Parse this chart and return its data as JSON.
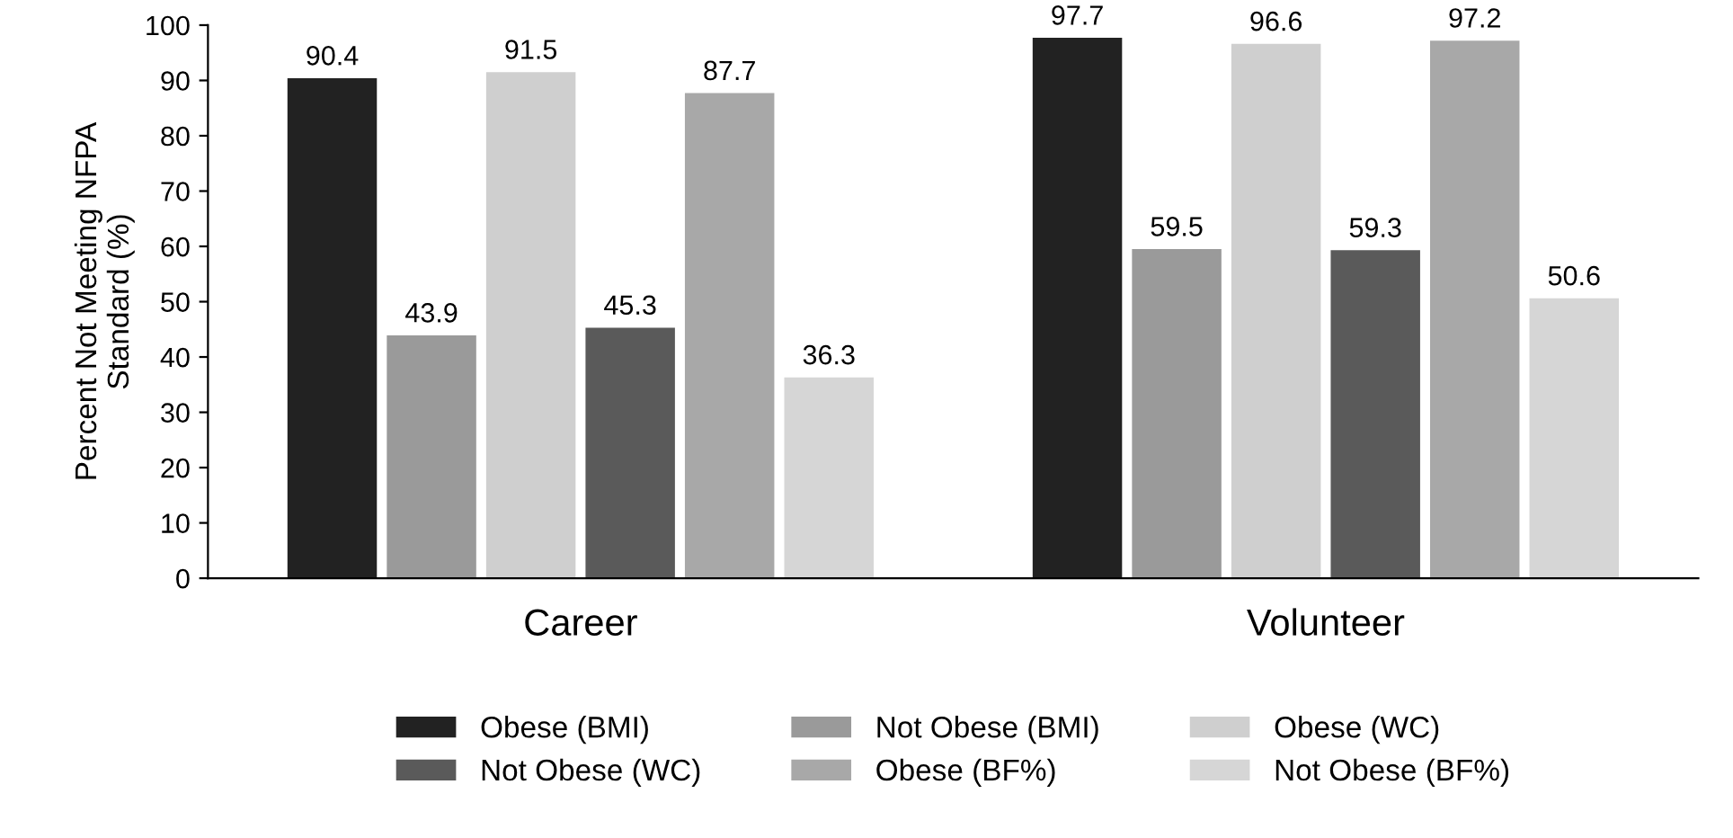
{
  "chart_data": {
    "type": "bar",
    "ylabel": "Percent Not Meeting NFPA\nStandard (%)",
    "categories": [
      "Career",
      "Volunteer"
    ],
    "series": [
      {
        "name": "Obese (BMI)",
        "color": "#222222",
        "values": [
          90.4,
          97.7
        ]
      },
      {
        "name": "Not Obese (BMI)",
        "color": "#9a9a9a",
        "values": [
          43.9,
          59.5
        ]
      },
      {
        "name": "Obese (WC)",
        "color": "#cfcfcf",
        "values": [
          91.5,
          96.6
        ]
      },
      {
        "name": "Not Obese (WC)",
        "color": "#5a5a5a",
        "values": [
          45.3,
          59.3
        ]
      },
      {
        "name": "Obese (BF%)",
        "color": "#a8a8a8",
        "values": [
          87.7,
          97.2
        ]
      },
      {
        "name": "Not Obese (BF%)",
        "color": "#d6d6d6",
        "values": [
          36.3,
          50.6
        ]
      }
    ],
    "ylim": [
      0,
      100
    ],
    "yticks": [
      0,
      10,
      20,
      30,
      40,
      50,
      60,
      70,
      80,
      90,
      100
    ],
    "data_labels": true,
    "grid": false,
    "legend": "bottom"
  }
}
